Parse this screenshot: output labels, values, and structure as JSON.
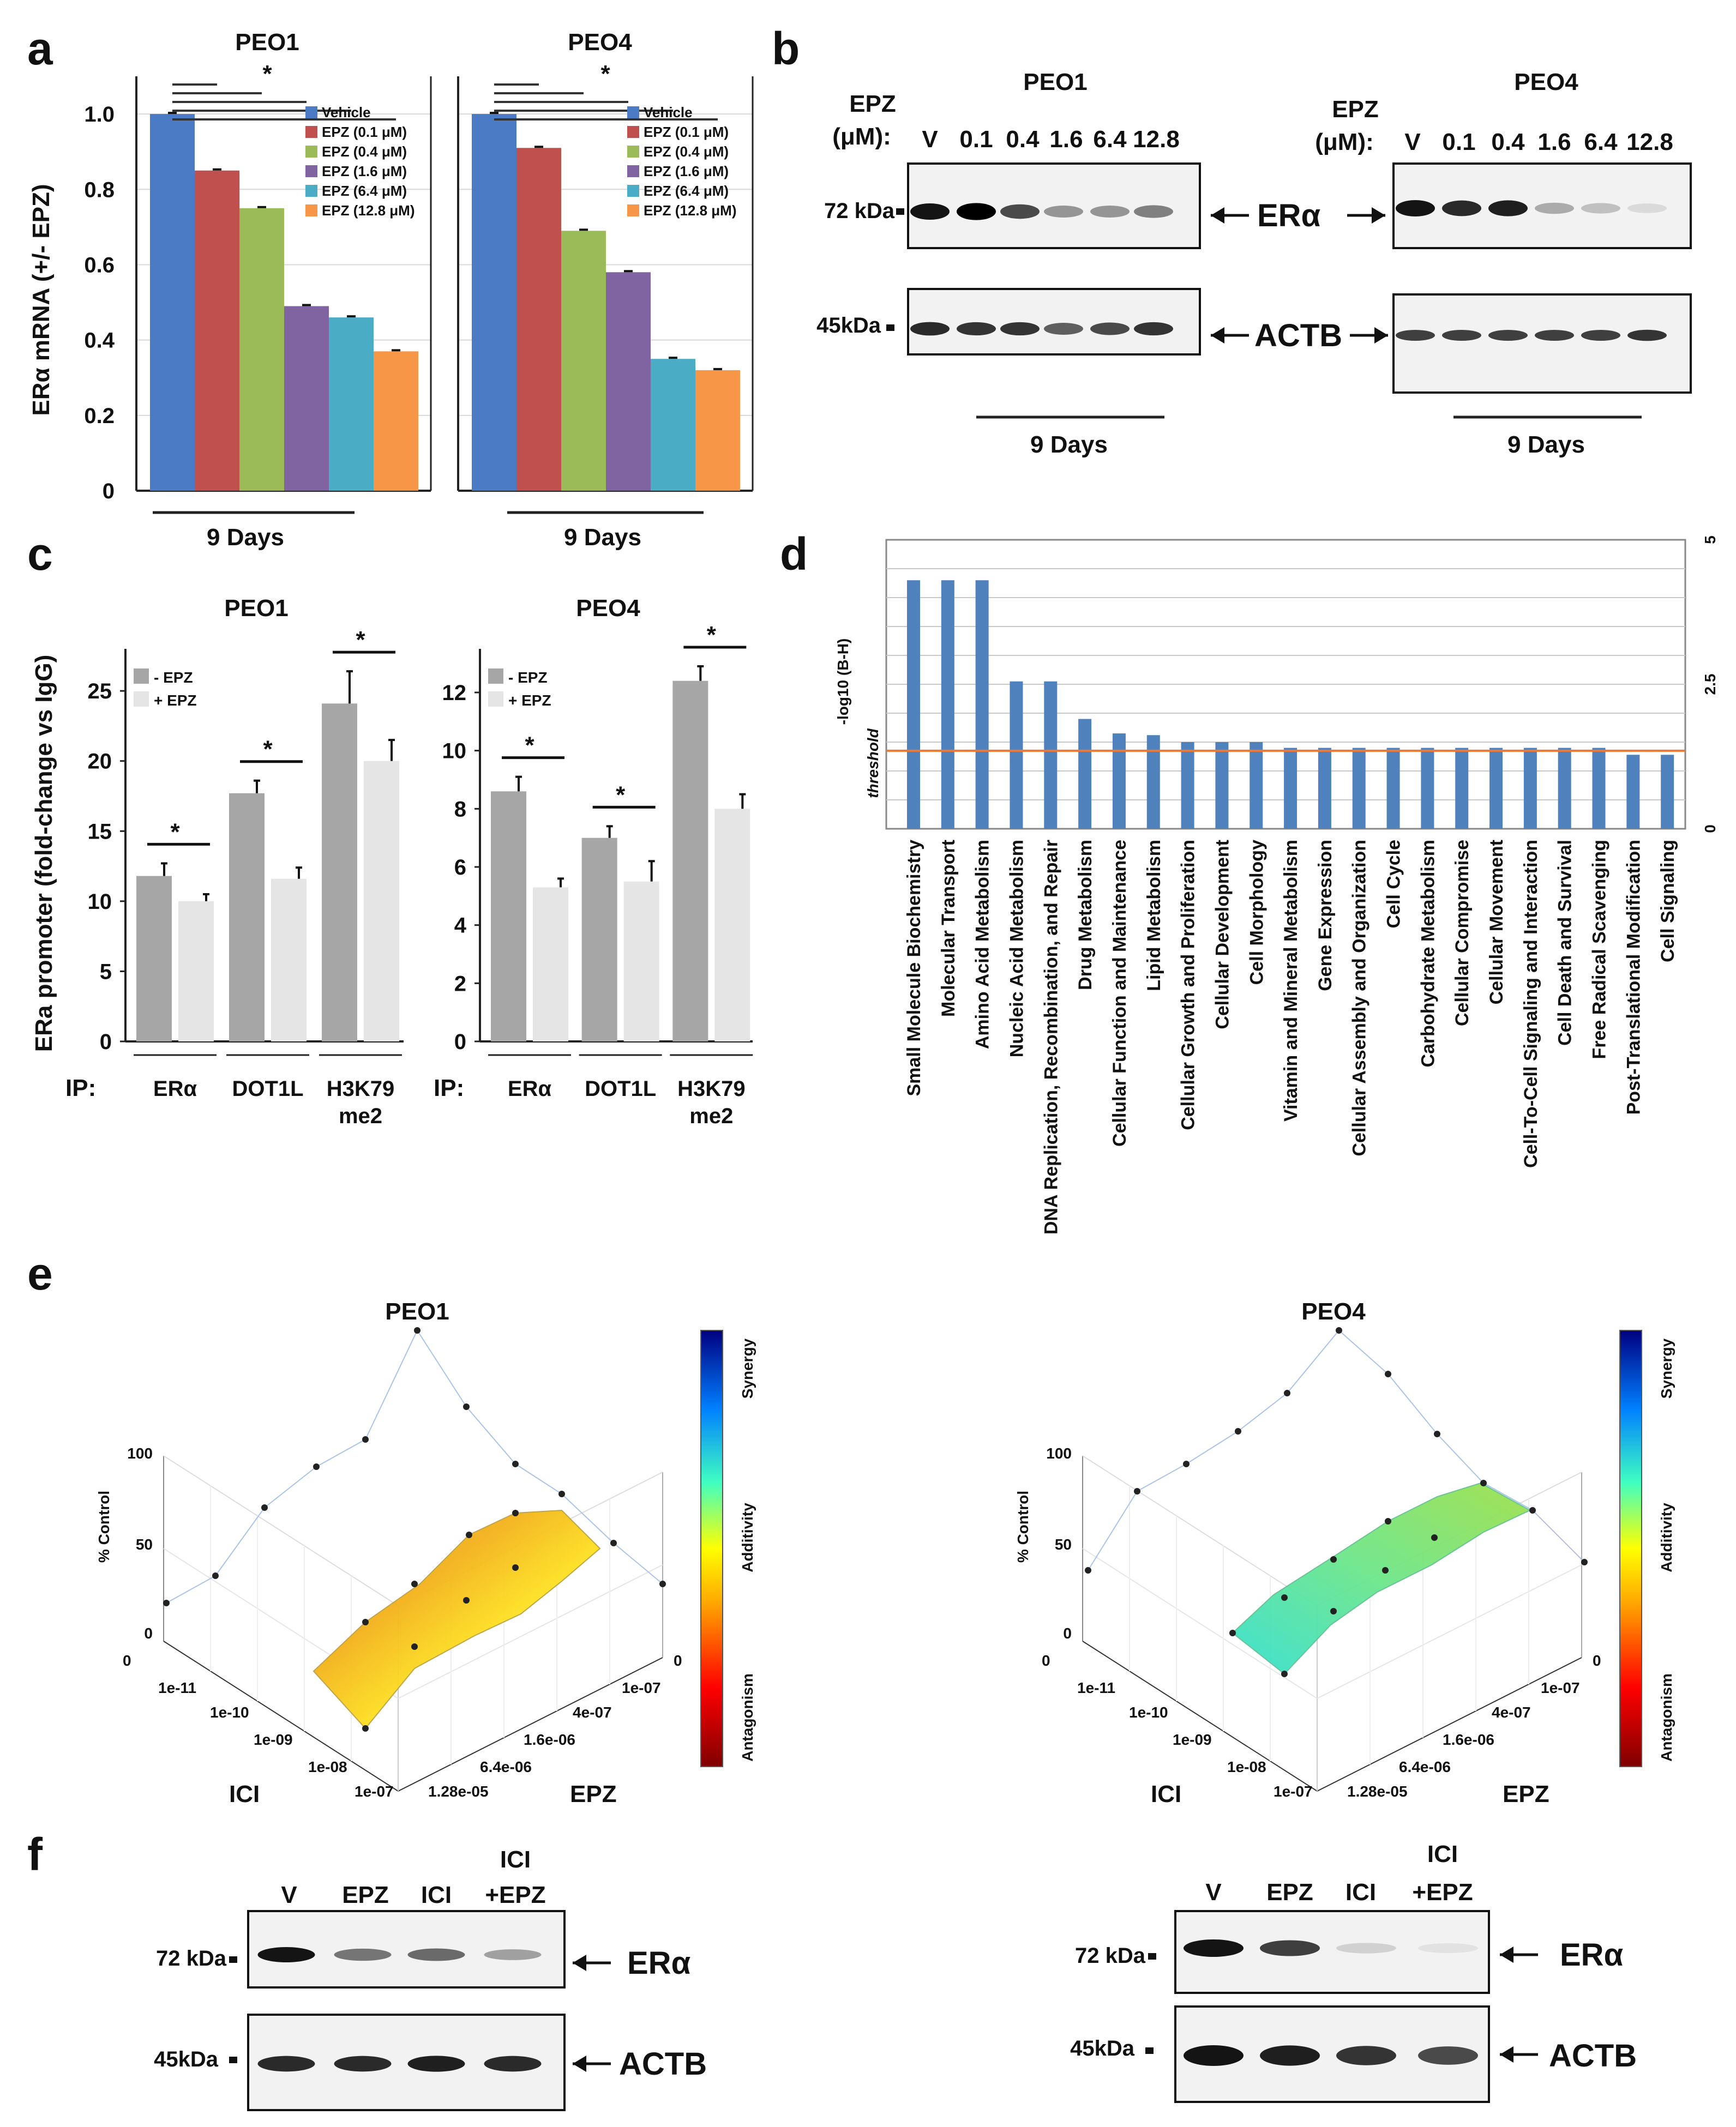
{
  "panels": {
    "a": "a",
    "b": "b",
    "c": "c",
    "d": "d",
    "e": "e",
    "f": "f"
  },
  "chart_data": [
    {
      "id": "a-PEO1",
      "type": "bar",
      "title": "PEO1",
      "ylabel": "ERα mRNA (+/- EPZ)",
      "xlabel": "9 Days",
      "ylim": [
        0,
        1.1
      ],
      "yticks": [
        0,
        0.2,
        0.4,
        0.6,
        0.8,
        1.0
      ],
      "ytick_labels": [
        "0",
        "0.2",
        "0.4",
        "0.6",
        "0.8",
        "1.0"
      ],
      "significance": "*",
      "series": [
        {
          "name": "Vehicle",
          "value": 1.0,
          "color": "#4a7bc4"
        },
        {
          "name": "EPZ (0.1 μM)",
          "value": 0.85,
          "color": "#c0504d"
        },
        {
          "name": "EPZ (0.4 μM)",
          "value": 0.75,
          "color": "#9bbb59"
        },
        {
          "name": "EPZ (1.6 μM)",
          "value": 0.49,
          "color": "#8064a2"
        },
        {
          "name": "EPZ (6.4 μM)",
          "value": 0.46,
          "color": "#4bacc6"
        },
        {
          "name": "EPZ (12.8 μM)",
          "value": 0.37,
          "color": "#f79646"
        }
      ]
    },
    {
      "id": "a-PEO4",
      "type": "bar",
      "title": "PEO4",
      "xlabel": "9 Days",
      "ylim": [
        0,
        1.1
      ],
      "significance": "*",
      "series": [
        {
          "name": "Vehicle",
          "value": 1.0,
          "color": "#4a7bc4"
        },
        {
          "name": "EPZ (0.1 μM)",
          "value": 0.91,
          "color": "#c0504d"
        },
        {
          "name": "EPZ (0.4 μM)",
          "value": 0.69,
          "color": "#9bbb59"
        },
        {
          "name": "EPZ (1.6 μM)",
          "value": 0.58,
          "color": "#8064a2"
        },
        {
          "name": "EPZ (6.4 μM)",
          "value": 0.35,
          "color": "#4bacc6"
        },
        {
          "name": "EPZ (12.8 μM)",
          "value": 0.32,
          "color": "#f79646"
        }
      ]
    },
    {
      "id": "c-PEO1",
      "type": "bar",
      "title": "PEO1",
      "ylabel": "ERa promoter (fold-change vs IgG)",
      "ip_label": "IP:",
      "ylim": [
        0,
        28
      ],
      "yticks": [
        0,
        5,
        10,
        15,
        20,
        25
      ],
      "ytick_labels": [
        "0",
        "5",
        "10",
        "15",
        "20",
        "25"
      ],
      "legend": [
        {
          "name": "- EPZ",
          "color": "#a6a6a6"
        },
        {
          "name": "+ EPZ",
          "color": "#e5e5e5"
        }
      ],
      "groups": [
        {
          "label": "ERα",
          "label2": "",
          "minus": 11.8,
          "minus_err": 0.9,
          "plus": 10.0,
          "plus_err": 0.5,
          "sig": "*"
        },
        {
          "label": "DOT1L",
          "label2": "",
          "minus": 17.7,
          "minus_err": 0.9,
          "plus": 11.6,
          "plus_err": 0.8,
          "sig": "*"
        },
        {
          "label": "H3K79",
          "label2": "me2",
          "minus": 24.1,
          "minus_err": 2.3,
          "plus": 20.0,
          "plus_err": 1.5,
          "sig": "*"
        }
      ]
    },
    {
      "id": "c-PEO4",
      "type": "bar",
      "title": "PEO4",
      "ip_label": "IP:",
      "ylim": [
        0,
        13.5
      ],
      "yticks": [
        0,
        2,
        4,
        6,
        8,
        10,
        12
      ],
      "ytick_labels": [
        "0",
        "2",
        "4",
        "6",
        "8",
        "10",
        "12"
      ],
      "legend": [
        {
          "name": "- EPZ",
          "color": "#a6a6a6"
        },
        {
          "name": "+ EPZ",
          "color": "#e5e5e5"
        }
      ],
      "groups": [
        {
          "label": "ERα",
          "label2": "",
          "minus": 8.6,
          "minus_err": 0.5,
          "plus": 5.3,
          "plus_err": 0.3,
          "sig": "*"
        },
        {
          "label": "DOT1L",
          "label2": "",
          "minus": 7.0,
          "minus_err": 0.4,
          "plus": 5.5,
          "plus_err": 0.7,
          "sig": "*"
        },
        {
          "label": "H3K79",
          "label2": "me2",
          "minus": 12.4,
          "minus_err": 0.5,
          "plus": 8.0,
          "plus_err": 0.5,
          "sig": "*"
        }
      ]
    },
    {
      "id": "d",
      "type": "bar",
      "ylabel": "-log10 (B-H)",
      "threshold_label": "threshold",
      "threshold": 1.35,
      "ylim": [
        0,
        5
      ],
      "yticks": [
        0,
        2.5,
        5
      ],
      "ytick_labels": [
        "0",
        "2.5",
        "5"
      ],
      "bar_color": "#4f81bd",
      "threshold_color": "#f07832",
      "categories": [
        "Small Molecule Biochemistry",
        "Molecular Transport",
        "Amino Acid Metabolism",
        "Nucleic Acid Metabolism",
        "DNA Replication, Recombination, and Repair",
        "Drug Metabolism",
        "Cellular Function and Maintenance",
        "Lipid Metabolism",
        "Cellular Growth and Proliferation",
        "Cellular Development",
        "Cell Morphology",
        "Vitamin and Mineral Metabolism",
        "Gene Expression",
        "Cellular Assembly and Organization",
        "Cell Cycle",
        "Carbohydrate Metabolism",
        "Cellular Compromise",
        "Cellular Movement",
        "Cell-To-Cell Signaling and Interaction",
        "Cell Death and Survival",
        "Free Radical Scavenging",
        "Post-Translational Modification",
        "Cell Signaling"
      ],
      "values": [
        4.3,
        4.3,
        4.3,
        2.55,
        2.55,
        1.9,
        1.65,
        1.62,
        1.5,
        1.5,
        1.5,
        1.4,
        1.4,
        1.4,
        1.4,
        1.4,
        1.4,
        1.4,
        1.4,
        1.4,
        1.4,
        1.28,
        1.28
      ]
    },
    {
      "id": "e-PEO1",
      "type": "surface3d",
      "title": "PEO1",
      "zlabel": "% Control",
      "zticks": [
        "0",
        "50",
        "100"
      ],
      "xlabel": "ICI",
      "xticks": [
        "0",
        "1e-11",
        "1e-10",
        "1e-09",
        "1e-08",
        "1e-07"
      ],
      "ylabel": "EPZ",
      "yticks": [
        "0",
        "1e-07",
        "4e-07",
        "1.6e-06",
        "6.4e-06",
        "1.28e-05"
      ],
      "colorbar": [
        "Synergy",
        "Additivity",
        "Antagonism"
      ]
    },
    {
      "id": "e-PEO4",
      "type": "surface3d",
      "title": "PEO4",
      "zlabel": "% Control",
      "zticks": [
        "0",
        "50",
        "100"
      ],
      "xlabel": "ICI",
      "xticks": [
        "0",
        "1e-11",
        "1e-10",
        "1e-09",
        "1e-08",
        "1e-07"
      ],
      "ylabel": "EPZ",
      "yticks": [
        "0",
        "1e-07",
        "4e-07",
        "1.6e-06",
        "6.4e-06",
        "1.28e-05"
      ],
      "colorbar": [
        "Synergy",
        "Additivity",
        "Antagonism"
      ]
    }
  ],
  "blots": {
    "b": {
      "peo1": {
        "title": "PEO1",
        "epz_label": "EPZ",
        "um_label": "(μM):",
        "lanes": [
          "V",
          "0.1",
          "0.4",
          "1.6",
          "6.4",
          "12.8"
        ],
        "era_marker": "72 kDa",
        "actb_marker": "45kDa",
        "era_intensity": [
          1.0,
          1.15,
          0.75,
          0.4,
          0.4,
          0.5
        ],
        "actb_intensity": [
          0.9,
          0.85,
          0.85,
          0.65,
          0.75,
          0.85
        ],
        "days": "9 Days"
      },
      "peo4": {
        "title": "PEO4",
        "epz_label": "EPZ",
        "um_label": "(μM):",
        "lanes": [
          "V",
          "0.1",
          "0.4",
          "1.6",
          "6.4",
          "12.8"
        ],
        "era_intensity": [
          1.0,
          0.9,
          0.95,
          0.3,
          0.2,
          0.08
        ],
        "actb_intensity": [
          0.8,
          0.8,
          0.8,
          0.8,
          0.8,
          0.85
        ],
        "days": "9 Days"
      },
      "era_label": "ERα",
      "actb_label": "ACTB"
    },
    "f": {
      "left": {
        "lanes": [
          "V",
          "EPZ",
          "ICI",
          "ICI",
          "+EPZ"
        ],
        "era_marker": "72 kDa",
        "actb_marker": "45kDa",
        "era_intensity": [
          1.0,
          0.55,
          0.6,
          0.35
        ],
        "actb_intensity": [
          0.9,
          0.9,
          0.95,
          0.9
        ]
      },
      "right": {
        "lanes": [
          "V",
          "EPZ",
          "ICI",
          "ICI",
          "+EPZ"
        ],
        "era_marker": "72 kDa",
        "actb_marker": "45kDa",
        "era_intensity": [
          1.0,
          0.8,
          0.12,
          0.04
        ],
        "actb_intensity": [
          1.0,
          0.95,
          0.85,
          0.75
        ]
      },
      "era_label": "ERα",
      "actb_label": "ACTB"
    }
  }
}
